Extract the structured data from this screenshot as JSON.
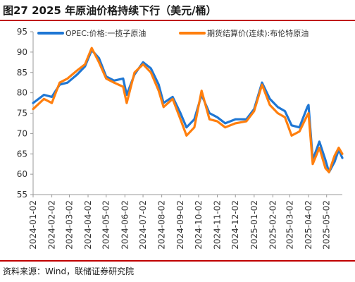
{
  "header": {
    "title": "图27 2025 年原油价格持续下行（美元/桶）"
  },
  "footer": {
    "source": "资料来源：Wind，联储证券研究院"
  },
  "chart_data": {
    "type": "line",
    "title": "2025 年原油价格持续下行",
    "ylabel": "美元/桶",
    "ylim": [
      55,
      95
    ],
    "yticks": [
      55,
      60,
      65,
      70,
      75,
      80,
      85,
      90,
      95
    ],
    "xticks": [
      "2024-01-02",
      "2024-02-02",
      "2024-03-02",
      "2024-04-02",
      "2024-05-02",
      "2024-06-02",
      "2024-07-02",
      "2024-08-02",
      "2024-09-02",
      "2024-10-02",
      "2024-11-02",
      "2024-12-02",
      "2025-01-02",
      "2025-02-02",
      "2025-03-02",
      "2025-04-02",
      "2025-05-02"
    ],
    "grid": false,
    "legend_position": "top",
    "series": [
      {
        "name": "OPEC:价格:一揽子原油",
        "color": "#1f77d4",
        "points": [
          [
            "2024-01-02",
            77.5
          ],
          [
            "2024-01-20",
            79.5
          ],
          [
            "2024-02-02",
            79.0
          ],
          [
            "2024-02-15",
            82.0
          ],
          [
            "2024-02-28",
            82.5
          ],
          [
            "2024-03-15",
            84.5
          ],
          [
            "2024-03-28",
            86.5
          ],
          [
            "2024-04-08",
            90.5
          ],
          [
            "2024-04-20",
            88.5
          ],
          [
            "2024-05-02",
            84.0
          ],
          [
            "2024-05-15",
            83.0
          ],
          [
            "2024-05-30",
            83.5
          ],
          [
            "2024-06-05",
            79.5
          ],
          [
            "2024-06-18",
            84.5
          ],
          [
            "2024-07-02",
            87.5
          ],
          [
            "2024-07-15",
            86.0
          ],
          [
            "2024-07-28",
            82.0
          ],
          [
            "2024-08-05",
            77.5
          ],
          [
            "2024-08-20",
            79.0
          ],
          [
            "2024-09-02",
            75.0
          ],
          [
            "2024-09-12",
            71.5
          ],
          [
            "2024-09-25",
            73.5
          ],
          [
            "2024-10-07",
            79.5
          ],
          [
            "2024-10-20",
            75.0
          ],
          [
            "2024-11-02",
            74.0
          ],
          [
            "2024-11-15",
            72.5
          ],
          [
            "2024-12-02",
            73.5
          ],
          [
            "2024-12-20",
            73.5
          ],
          [
            "2025-01-02",
            76.0
          ],
          [
            "2025-01-15",
            82.5
          ],
          [
            "2025-01-28",
            78.5
          ],
          [
            "2025-02-10",
            76.5
          ],
          [
            "2025-02-22",
            75.5
          ],
          [
            "2025-03-05",
            72.0
          ],
          [
            "2025-03-18",
            71.5
          ],
          [
            "2025-03-31",
            76.5
          ],
          [
            "2025-04-02",
            77.0
          ],
          [
            "2025-04-09",
            63.5
          ],
          [
            "2025-04-20",
            68.0
          ],
          [
            "2025-04-30",
            63.5
          ],
          [
            "2025-05-06",
            60.5
          ],
          [
            "2025-05-15",
            63.0
          ],
          [
            "2025-05-22",
            66.0
          ],
          [
            "2025-05-28",
            64.0
          ]
        ]
      },
      {
        "name": "期货结算价(连续):布伦特原油",
        "color": "#ff7f0e",
        "points": [
          [
            "2024-01-02",
            76.0
          ],
          [
            "2024-01-20",
            78.5
          ],
          [
            "2024-02-02",
            77.5
          ],
          [
            "2024-02-15",
            82.5
          ],
          [
            "2024-02-28",
            83.5
          ],
          [
            "2024-03-15",
            85.5
          ],
          [
            "2024-03-28",
            87.0
          ],
          [
            "2024-04-08",
            91.0
          ],
          [
            "2024-04-20",
            87.5
          ],
          [
            "2024-05-02",
            83.5
          ],
          [
            "2024-05-15",
            82.5
          ],
          [
            "2024-05-30",
            81.5
          ],
          [
            "2024-06-05",
            77.5
          ],
          [
            "2024-06-18",
            85.0
          ],
          [
            "2024-07-02",
            87.0
          ],
          [
            "2024-07-15",
            85.0
          ],
          [
            "2024-07-28",
            80.5
          ],
          [
            "2024-08-05",
            76.5
          ],
          [
            "2024-08-20",
            78.5
          ],
          [
            "2024-09-02",
            73.5
          ],
          [
            "2024-09-12",
            69.5
          ],
          [
            "2024-09-25",
            71.5
          ],
          [
            "2024-10-07",
            80.5
          ],
          [
            "2024-10-20",
            73.5
          ],
          [
            "2024-11-02",
            73.0
          ],
          [
            "2024-11-15",
            71.5
          ],
          [
            "2024-12-02",
            72.5
          ],
          [
            "2024-12-20",
            73.0
          ],
          [
            "2025-01-02",
            75.5
          ],
          [
            "2025-01-15",
            82.0
          ],
          [
            "2025-01-28",
            77.0
          ],
          [
            "2025-02-10",
            75.0
          ],
          [
            "2025-02-22",
            74.0
          ],
          [
            "2025-03-05",
            69.5
          ],
          [
            "2025-03-18",
            70.5
          ],
          [
            "2025-03-31",
            74.5
          ],
          [
            "2025-04-02",
            75.0
          ],
          [
            "2025-04-09",
            62.5
          ],
          [
            "2025-04-20",
            66.5
          ],
          [
            "2025-04-30",
            61.5
          ],
          [
            "2025-05-06",
            60.5
          ],
          [
            "2025-05-15",
            64.5
          ],
          [
            "2025-05-22",
            66.5
          ],
          [
            "2025-05-28",
            65.0
          ]
        ]
      }
    ]
  }
}
